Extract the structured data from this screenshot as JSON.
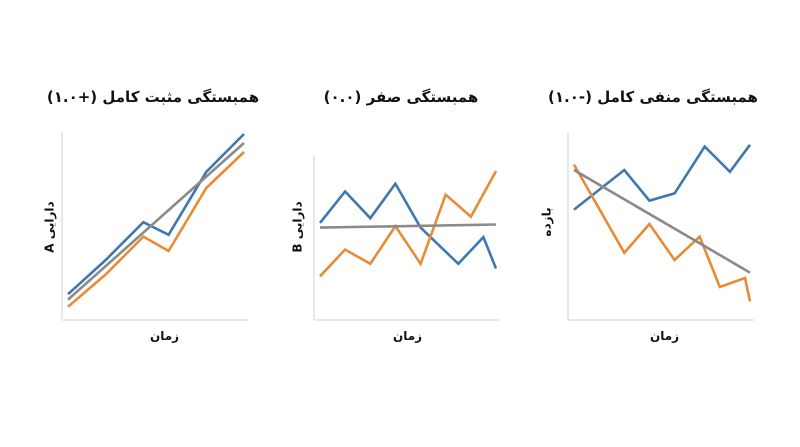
{
  "colors": {
    "blue": "#3f78b0",
    "orange": "#e98b36",
    "gray": "#8a8a8a",
    "axis": "#d9d9d9"
  },
  "chart_data": [
    {
      "type": "line",
      "title": "همبستگی مثبت کامل (+۱.۰)",
      "xlabel": "زمان",
      "ylabel": "دارایی A",
      "x": [
        0,
        1,
        2,
        3,
        4,
        5,
        6,
        7
      ],
      "xlim": [
        0,
        7
      ],
      "ylim": [
        0,
        10
      ],
      "grid": false,
      "series": [
        {
          "color": "blue",
          "values": [
            1.1,
            3.0,
            5.1,
            4.4,
            7.9,
            10.0
          ],
          "x": [
            0,
            1.5,
            3,
            4,
            5.5,
            7
          ]
        },
        {
          "color": "orange",
          "values": [
            0.4,
            2.2,
            4.3,
            3.5,
            7.0,
            9.0
          ],
          "x": [
            0,
            1.5,
            3,
            4,
            5.5,
            7
          ]
        },
        {
          "color": "gray",
          "values": [
            0.8,
            9.5
          ],
          "x": [
            0,
            7
          ]
        }
      ]
    },
    {
      "type": "line",
      "title": "همبستگی صفر (۰.۰)",
      "xlabel": "زمان",
      "ylabel": "دارایی B",
      "xlim": [
        0,
        7
      ],
      "ylim": [
        0,
        10
      ],
      "grid": false,
      "series": [
        {
          "color": "blue",
          "x": [
            0,
            1,
            2,
            3,
            4,
            5.5,
            6.5,
            7
          ],
          "values": [
            5.8,
            7.8,
            6.1,
            8.3,
            5.5,
            3.2,
            4.9,
            2.9
          ]
        },
        {
          "color": "orange",
          "x": [
            0,
            1,
            2,
            3,
            4,
            5,
            6,
            7
          ],
          "values": [
            2.4,
            4.1,
            3.2,
            5.6,
            3.2,
            7.6,
            6.2,
            9.1
          ]
        },
        {
          "color": "gray",
          "x": [
            0,
            7
          ],
          "values": [
            5.5,
            5.7
          ]
        }
      ]
    },
    {
      "type": "line",
      "title": "همبستگی منفی کامل (-۱.۰)",
      "xlabel": "زمان",
      "ylabel": "بازده",
      "xlim": [
        0,
        7
      ],
      "ylim": [
        0,
        10
      ],
      "grid": false,
      "series": [
        {
          "color": "blue",
          "x": [
            0,
            2,
            3,
            4,
            5.2,
            6.2,
            7
          ],
          "values": [
            5.8,
            8.0,
            6.3,
            6.7,
            9.3,
            7.9,
            9.4
          ]
        },
        {
          "color": "orange",
          "x": [
            0,
            2,
            3,
            4,
            5,
            5.8,
            6.8,
            7
          ],
          "values": [
            8.3,
            3.4,
            5.0,
            3.0,
            4.3,
            1.5,
            2.0,
            0.7
          ]
        },
        {
          "color": "gray",
          "x": [
            0,
            7
          ],
          "values": [
            8.0,
            2.3
          ]
        }
      ]
    }
  ]
}
